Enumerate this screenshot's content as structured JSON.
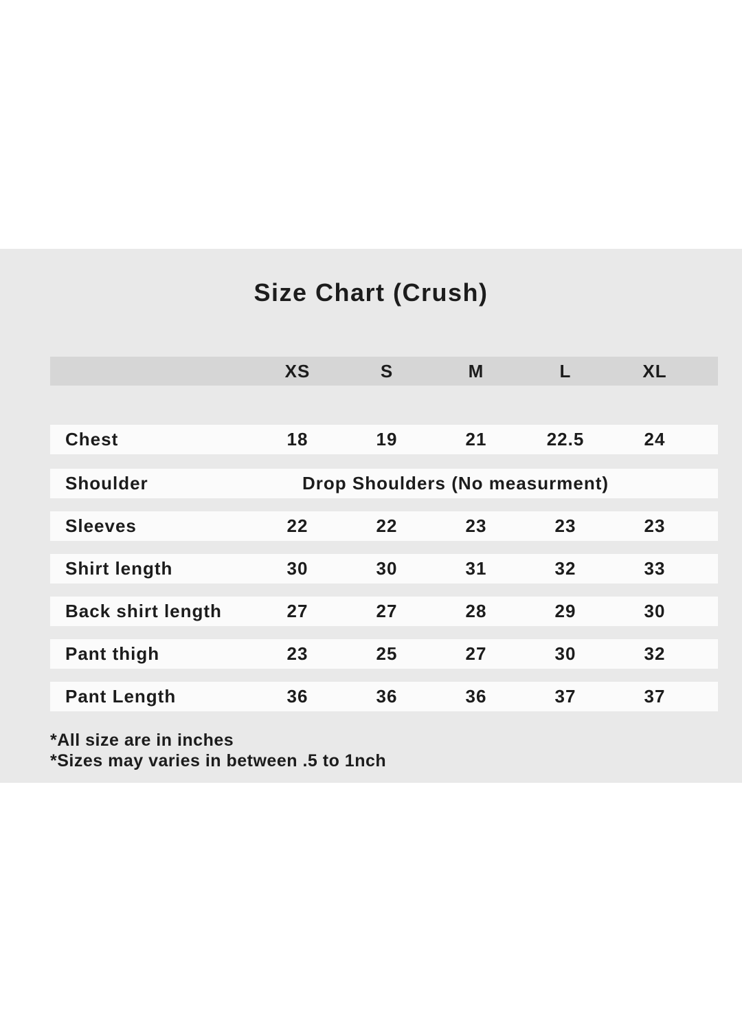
{
  "title": "Size Chart (Crush)",
  "chart_data": {
    "type": "table",
    "title": "Size Chart (Crush)",
    "columns": [
      "XS",
      "S",
      "M",
      "L",
      "XL"
    ],
    "rows": [
      {
        "label": "Chest",
        "values": [
          "18",
          "19",
          "21",
          "22.5",
          "24"
        ]
      },
      {
        "label": "Shoulder",
        "span_text": "Drop Shoulders (No measurment)"
      },
      {
        "label": "Sleeves",
        "values": [
          "22",
          "22",
          "23",
          "23",
          "23"
        ]
      },
      {
        "label": "Shirt length",
        "values": [
          "30",
          "30",
          "31",
          "32",
          "33"
        ]
      },
      {
        "label": "Back shirt length",
        "values": [
          "27",
          "27",
          "28",
          "29",
          "30"
        ]
      },
      {
        "label": "Pant thigh",
        "values": [
          "23",
          "25",
          "27",
          "30",
          "32"
        ]
      },
      {
        "label": "Pant Length",
        "values": [
          "36",
          "36",
          "36",
          "37",
          "37"
        ]
      }
    ],
    "footnotes": [
      "*All size are in inches",
      "*Sizes may varies in between .5 to 1nch"
    ]
  },
  "colors": {
    "page_bg": "#ffffff",
    "panel_bg": "#e9e9e9",
    "header_bg": "#d6d6d6",
    "row_bg": "#fbfbfb",
    "text": "#1c1c1c"
  }
}
